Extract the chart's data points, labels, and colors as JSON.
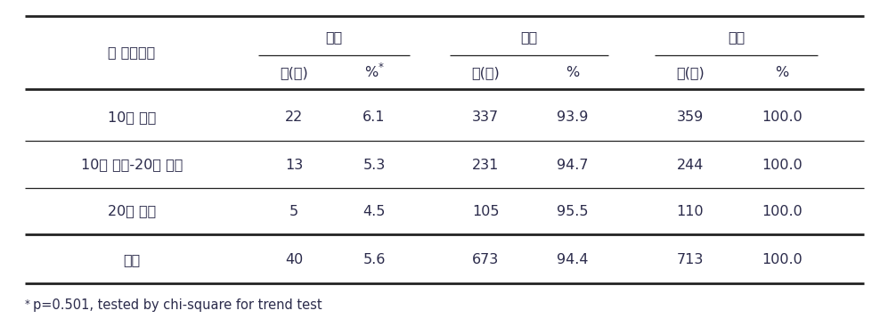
{
  "title_col": "쳑 작업기간",
  "grp_labels": [
    "반응",
    "음성",
    "합계"
  ],
  "subcol_labels": [
    "수(명)",
    "%*",
    "수(명)",
    "%",
    "수(명)",
    "%"
  ],
  "rows": [
    {
      "label": "10년 미만",
      "data": [
        "22",
        "6.1",
        "337",
        "93.9",
        "359",
        "100.0"
      ]
    },
    {
      "label": "10년 이상-20년 미만",
      "data": [
        "13",
        "5.3",
        "231",
        "94.7",
        "244",
        "100.0"
      ]
    },
    {
      "label": "20년 이상",
      "data": [
        "5",
        "4.5",
        "105",
        "95.5",
        "110",
        "100.0"
      ]
    }
  ],
  "total_row": {
    "label": "합계",
    "data": [
      "40",
      "5.6",
      "673",
      "94.4",
      "713",
      "100.0"
    ]
  },
  "footnote_star": "*",
  "footnote_text": "p=0.501, tested by chi-square for trend test",
  "bg_color": "#ffffff",
  "text_color": "#2b2b4b",
  "line_color": "#222222",
  "font_size": 11.5,
  "footnote_font_size": 10.5
}
